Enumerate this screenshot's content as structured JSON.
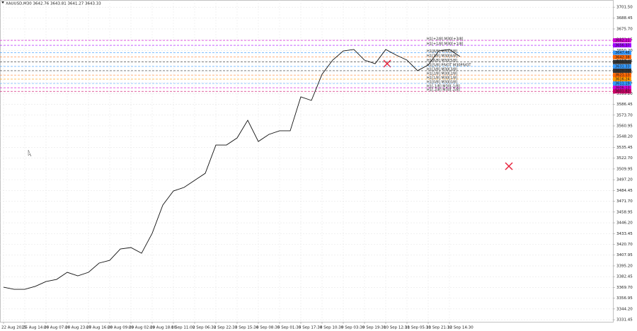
{
  "chart_data": {
    "type": "line",
    "title": "XAUUSD,M30 3642.76 3643.81 3641.27 3643.33",
    "x": [
      "22 Aug 2025",
      null,
      "25 Aug 14:00",
      null,
      "26 Aug 07:00",
      null,
      "26 Aug 23:00",
      null,
      "27 Aug 16:00",
      null,
      "28 Aug 09:00",
      null,
      "29 Aug 02:00",
      null,
      "29 Aug 18:00",
      null,
      "1 Sep 11:00",
      null,
      "2 Sep 06:30",
      null,
      "2 Sep 22:30",
      null,
      "3 Sep 15:30",
      null,
      "4 Sep 08:30",
      null,
      "5 Sep 01:30",
      null,
      "5 Sep 17:30",
      null,
      "8 Sep 10:30",
      null,
      "9 Sep 03:30",
      null,
      "9 Sep 19:30",
      null,
      "10 Sep 12:30",
      null,
      "11 Sep 05:30",
      null,
      "11 Sep 21:30",
      null,
      "12 Sep 14:30",
      null
    ],
    "series": [
      {
        "color": "#111111",
        "values": [
          3370,
          3367.5,
          3367.5,
          3371,
          3376.7,
          3379.2,
          3387.6,
          3383.4,
          3387.6,
          3398.5,
          3401.8,
          3415.2,
          3416.9,
          3410.2,
          3433.7,
          3467.2,
          3483.9,
          3488.1,
          3496.5,
          3504.8,
          3538.3,
          3538.3,
          3546.7,
          3567.6,
          3542.5,
          3550.9,
          3555.1,
          3555.1,
          3595.3,
          3591.1,
          3622.1,
          3638.8,
          3649.7,
          3651.4,
          3638.8,
          3634.6,
          3651.4,
          3644.7,
          3638.8,
          3626.3,
          3633,
          3649.7,
          3651.4,
          3643
        ]
      }
    ],
    "ylim": [
      3329,
      3710
    ],
    "yticks": [
      {
        "value": 3331.45,
        "label": "3331.45"
      },
      {
        "value": 3344.2,
        "label": "3344.20"
      },
      {
        "value": 3356.95,
        "label": "3356.95"
      },
      {
        "value": 3369.7,
        "label": "3369.70"
      },
      {
        "value": 3382.45,
        "label": "3382.45"
      },
      {
        "value": 3395.2,
        "label": "3395.20"
      },
      {
        "value": 3407.95,
        "label": "3407.95"
      },
      {
        "value": 3420.7,
        "label": "3420.70"
      },
      {
        "value": 3433.45,
        "label": "3433.45"
      },
      {
        "value": 3446.2,
        "label": "3446.20"
      },
      {
        "value": 3458.95,
        "label": "3458.95"
      },
      {
        "value": 3471.7,
        "label": "3471.70"
      },
      {
        "value": 3484.45,
        "label": "3484.45"
      },
      {
        "value": 3497.2,
        "label": "3497.20"
      },
      {
        "value": 3509.95,
        "label": "3509.95"
      },
      {
        "value": 3522.7,
        "label": "3522.70"
      },
      {
        "value": 3535.45,
        "label": "3535.45"
      },
      {
        "value": 3548.2,
        "label": "3548.20"
      },
      {
        "value": 3560.95,
        "label": "3560.95"
      },
      {
        "value": 3573.7,
        "label": "3573.70"
      },
      {
        "value": 3586.45,
        "label": "3586.45"
      },
      {
        "value": 3599.2,
        "label": "3599.20"
      },
      {
        "value": 3611.95,
        "label": "3611.95"
      },
      {
        "value": 3624.7,
        "label": "3624.70"
      },
      {
        "value": 3637.45,
        "label": "3637.45"
      },
      {
        "value": 3650.2,
        "label": "3650.20"
      },
      {
        "value": 3662.95,
        "label": "3662.95"
      },
      {
        "value": 3675.7,
        "label": "3675.70"
      },
      {
        "value": 3688.45,
        "label": "3688.45"
      },
      {
        "value": 3701.5,
        "label": "3701.50"
      }
    ],
    "grid": true,
    "levels": [
      {
        "name": "H1[+2/8] M30[+3/8]",
        "color": "#d400d4",
        "value": 3662.21
      },
      {
        "name": "H1[+1/8] M30[+1/8]",
        "color": "#a000ff",
        "value": 3656.37
      },
      {
        "name": "H1[8/8] M30[8/8]",
        "color": "#3399ff",
        "value": 3647.46
      },
      {
        "name": "H1[7/8] M30[6/8]",
        "color": "#ff6600",
        "value": 3642.38
      },
      {
        "name": "H1[6/8] M30[5/8]",
        "color": "#333333",
        "value": 3636.57
      },
      {
        "name": "H1[5/8] PIVOT M30PIVOT",
        "color": "#3399ff",
        "value": 3631.33
      },
      {
        "name": "H1[3/8] M30[3/8]",
        "color": "#333333",
        "value": 3626.29
      },
      {
        "name": "H1[2/8] M30[2/8]",
        "color": "#ff6600",
        "value": 3621.13
      },
      {
        "name": "H1[1/8] M30[1/8]",
        "color": "#ff9900",
        "value": 3616.24
      },
      {
        "name": "H1[0/8] M30[0/8]",
        "color": "#3399ff",
        "value": 3611.19
      },
      {
        "name": "H1[-1/8] M30[-1/8]",
        "color": "#d400d4",
        "value": 3606.13
      },
      {
        "name": "H1[-2/8] M30[-2/8]",
        "color": "#cc0066",
        "value": 3601.82
      }
    ]
  }
}
